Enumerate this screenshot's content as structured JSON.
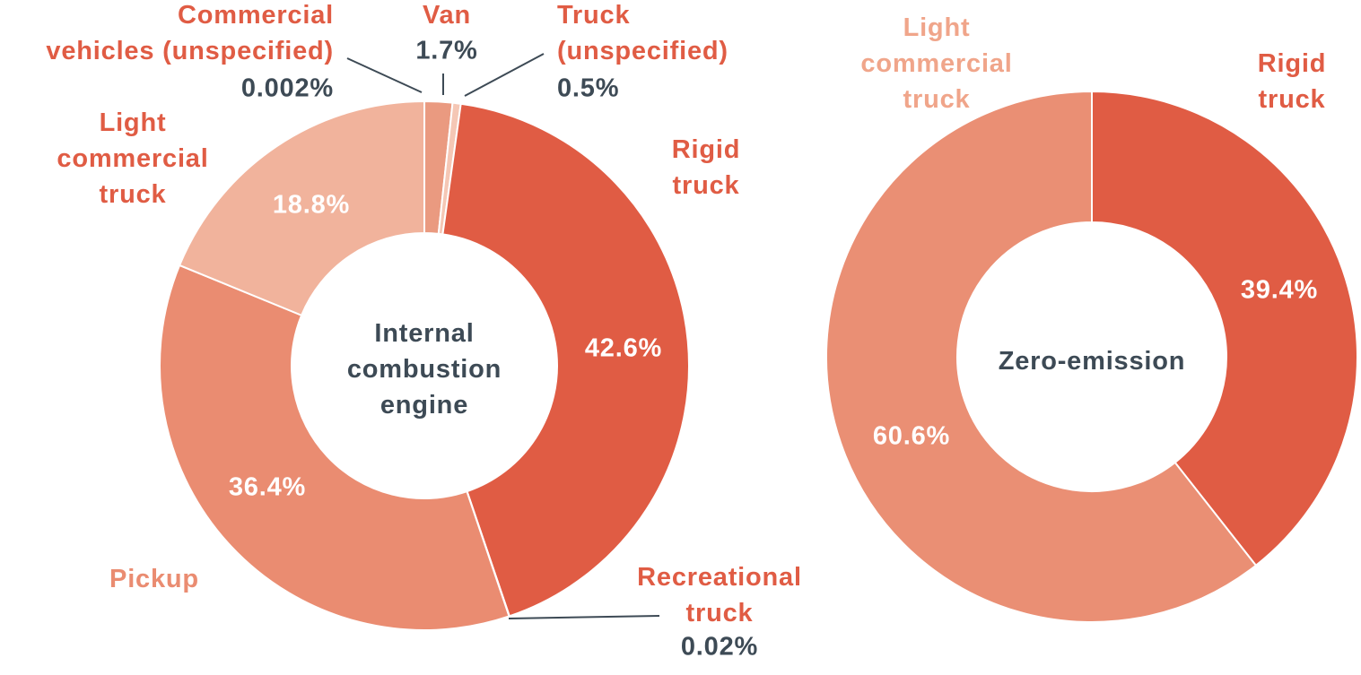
{
  "chart_data": [
    {
      "type": "pie",
      "donut": true,
      "center_label": "Internal combustion engine",
      "categories": [
        "Commercial vehicles (unspecified)",
        "Van",
        "Truck (unspecified)",
        "Rigid truck",
        "Recreational truck",
        "Pickup",
        "Light commercial truck"
      ],
      "values": [
        0.002,
        1.7,
        0.5,
        42.6,
        0.02,
        36.4,
        18.8
      ],
      "value_labels": [
        "0.002%",
        "1.7%",
        "0.5%",
        "42.6%",
        "0.02%",
        "36.4%",
        "18.8%"
      ],
      "colors": [
        "#f3b9a4",
        "#ea9a80",
        "#f5c7b5",
        "#e05c44",
        "#f7d9cd",
        "#ea8c71",
        "#f1b39c"
      ]
    },
    {
      "type": "pie",
      "donut": true,
      "center_label": "Zero-emission",
      "categories": [
        "Rigid truck",
        "Light commercial truck"
      ],
      "values": [
        39.4,
        60.6
      ],
      "value_labels": [
        "39.4%",
        "60.6%"
      ],
      "colors": [
        "#e05c44",
        "#ea8f74"
      ]
    }
  ]
}
